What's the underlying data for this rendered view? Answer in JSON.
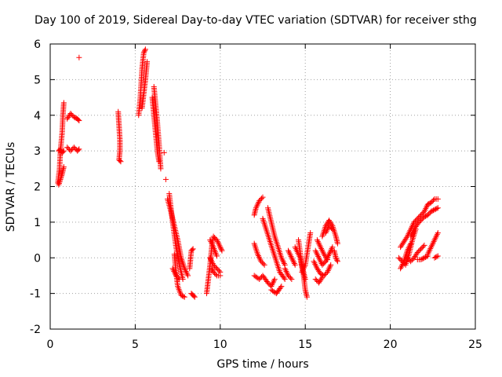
{
  "chart_data": {
    "type": "scatter",
    "title": "Day 100 of 2019, Sidereal Day-to-day VTEC variation (SDTVAR) for receiver sthg",
    "xlabel": "GPS time / hours",
    "ylabel": "SDTVAR / TECUs",
    "xlim": [
      0,
      25
    ],
    "ylim": [
      -2,
      6
    ],
    "xticks": [
      "0",
      "5",
      "10",
      "15",
      "20",
      "25"
    ],
    "yticks": [
      "-2",
      "-1",
      "0",
      "1",
      "2",
      "3",
      "4",
      "5",
      "6"
    ],
    "grid": true,
    "marker": "+",
    "color": "#ff0000",
    "series": [
      {
        "name": "SDTVAR",
        "tracks": [
          [
            [
              0.45,
              2.1
            ],
            [
              0.55,
              2.5
            ],
            [
              0.6,
              3.0
            ],
            [
              0.7,
              3.5
            ],
            [
              0.75,
              4.0
            ],
            [
              0.8,
              4.35
            ]
          ],
          [
            [
              0.5,
              2.05
            ],
            [
              0.6,
              2.2
            ],
            [
              0.7,
              2.35
            ],
            [
              0.8,
              2.55
            ]
          ],
          [
            [
              0.5,
              3.0
            ],
            [
              0.6,
              3.05
            ],
            [
              0.7,
              2.95
            ],
            [
              0.8,
              3.0
            ]
          ],
          [
            [
              1.0,
              3.9
            ],
            [
              1.2,
              4.05
            ],
            [
              1.4,
              3.95
            ],
            [
              1.6,
              3.9
            ],
            [
              1.7,
              3.85
            ]
          ],
          [
            [
              1.0,
              3.1
            ],
            [
              1.2,
              3.0
            ],
            [
              1.4,
              3.1
            ],
            [
              1.6,
              3.0
            ],
            [
              1.7,
              3.05
            ]
          ],
          [
            [
              1.7,
              5.62
            ]
          ],
          [
            [
              4.0,
              4.1
            ],
            [
              4.05,
              3.7
            ],
            [
              4.1,
              3.3
            ],
            [
              4.1,
              3.0
            ],
            [
              4.05,
              2.75
            ],
            [
              4.15,
              2.7
            ]
          ],
          [
            [
              5.2,
              4.0
            ],
            [
              5.3,
              4.5
            ],
            [
              5.4,
              5.3
            ],
            [
              5.5,
              5.75
            ],
            [
              5.6,
              5.85
            ]
          ],
          [
            [
              5.4,
              4.2
            ],
            [
              5.5,
              4.6
            ],
            [
              5.6,
              5.0
            ],
            [
              5.7,
              5.5
            ]
          ],
          [
            [
              6.1,
              4.8
            ],
            [
              6.2,
              4.3
            ],
            [
              6.3,
              3.8
            ],
            [
              6.4,
              3.2
            ],
            [
              6.5,
              2.5
            ]
          ],
          [
            [
              6.0,
              4.5
            ],
            [
              6.1,
              4.0
            ],
            [
              6.2,
              3.5
            ],
            [
              6.3,
              3.0
            ],
            [
              6.4,
              2.7
            ]
          ],
          [
            [
              6.7,
              2.95
            ]
          ],
          [
            [
              6.8,
              2.2
            ]
          ],
          [
            [
              6.9,
              1.65
            ],
            [
              7.1,
              1.3
            ],
            [
              7.3,
              0.9
            ],
            [
              7.5,
              0.5
            ],
            [
              7.7,
              0.0
            ],
            [
              7.9,
              -0.3
            ],
            [
              8.1,
              -0.5
            ]
          ],
          [
            [
              7.0,
              1.8
            ],
            [
              7.2,
              1.0
            ],
            [
              7.4,
              0.3
            ],
            [
              7.6,
              -0.2
            ],
            [
              7.8,
              -0.6
            ]
          ],
          [
            [
              7.3,
              0.1
            ],
            [
              7.4,
              -0.4
            ],
            [
              7.5,
              -0.8
            ],
            [
              7.7,
              -1.05
            ],
            [
              7.9,
              -1.1
            ]
          ],
          [
            [
              7.2,
              -0.3
            ],
            [
              7.4,
              -0.5
            ],
            [
              7.6,
              -0.6
            ]
          ],
          [
            [
              8.3,
              -1.0
            ],
            [
              8.4,
              -1.05
            ],
            [
              8.5,
              -1.1
            ]
          ],
          [
            [
              8.2,
              -0.3
            ],
            [
              8.3,
              0.2
            ],
            [
              8.4,
              0.25
            ]
          ],
          [
            [
              9.2,
              -1.0
            ],
            [
              9.3,
              -0.6
            ],
            [
              9.4,
              -0.2
            ],
            [
              9.5,
              0.3
            ],
            [
              9.6,
              0.6
            ],
            [
              9.8,
              0.5
            ],
            [
              10.0,
              0.3
            ],
            [
              10.1,
              0.2
            ]
          ],
          [
            [
              9.4,
              0.0
            ],
            [
              9.6,
              -0.2
            ],
            [
              9.8,
              -0.3
            ],
            [
              10.0,
              -0.4
            ]
          ],
          [
            [
              9.5,
              -0.3
            ],
            [
              9.6,
              -0.4
            ],
            [
              9.8,
              -0.5
            ],
            [
              10.0,
              -0.5
            ]
          ],
          [
            [
              9.4,
              0.5
            ],
            [
              9.6,
              0.3
            ],
            [
              9.8,
              0.05
            ]
          ],
          [
            [
              12.0,
              -0.5
            ],
            [
              12.3,
              -0.6
            ],
            [
              12.5,
              -0.5
            ],
            [
              12.8,
              -0.7
            ],
            [
              13.0,
              -0.8
            ],
            [
              13.2,
              -0.6
            ]
          ],
          [
            [
              12.0,
              1.2
            ],
            [
              12.1,
              1.4
            ],
            [
              12.3,
              1.6
            ],
            [
              12.5,
              1.7
            ]
          ],
          [
            [
              12.0,
              0.4
            ],
            [
              12.2,
              0.1
            ],
            [
              12.4,
              -0.1
            ],
            [
              12.6,
              -0.2
            ]
          ],
          [
            [
              12.8,
              1.4
            ],
            [
              13.0,
              1.0
            ],
            [
              13.2,
              0.6
            ],
            [
              13.4,
              0.3
            ],
            [
              13.6,
              0.0
            ],
            [
              13.8,
              -0.2
            ]
          ],
          [
            [
              12.5,
              1.1
            ],
            [
              12.7,
              0.8
            ],
            [
              12.9,
              0.5
            ],
            [
              13.1,
              0.2
            ],
            [
              13.3,
              -0.1
            ],
            [
              13.5,
              -0.4
            ],
            [
              13.8,
              -0.6
            ]
          ],
          [
            [
              13.0,
              -0.9
            ],
            [
              13.3,
              -1.0
            ],
            [
              13.6,
              -0.8
            ]
          ],
          [
            [
              13.8,
              -0.3
            ],
            [
              14.0,
              -0.5
            ],
            [
              14.2,
              -0.6
            ]
          ],
          [
            [
              14.0,
              0.2
            ],
            [
              14.2,
              0.0
            ],
            [
              14.4,
              -0.2
            ]
          ],
          [
            [
              14.4,
              0.3
            ],
            [
              14.7,
              0.0
            ],
            [
              14.9,
              -0.5
            ],
            [
              15.0,
              -0.9
            ],
            [
              15.1,
              -1.1
            ]
          ],
          [
            [
              14.6,
              0.5
            ],
            [
              14.8,
              -0.2
            ],
            [
              15.0,
              -0.6
            ]
          ],
          [
            [
              14.8,
              -0.4
            ],
            [
              15.0,
              -0.2
            ],
            [
              15.2,
              0.4
            ],
            [
              15.3,
              0.7
            ]
          ],
          [
            [
              15.5,
              -0.1
            ],
            [
              15.7,
              -0.3
            ],
            [
              15.9,
              -0.45
            ],
            [
              16.1,
              -0.5
            ],
            [
              16.3,
              -0.4
            ],
            [
              16.5,
              -0.2
            ]
          ],
          [
            [
              15.6,
              0.2
            ],
            [
              15.8,
              0.0
            ],
            [
              16.0,
              -0.2
            ],
            [
              16.2,
              -0.1
            ],
            [
              16.4,
              0.1
            ],
            [
              16.6,
              0.3
            ]
          ],
          [
            [
              15.7,
              0.5
            ],
            [
              15.9,
              0.3
            ],
            [
              16.1,
              0.1
            ],
            [
              16.3,
              -0.05
            ]
          ],
          [
            [
              15.6,
              -0.6
            ],
            [
              15.8,
              -0.7
            ],
            [
              16.0,
              -0.55
            ]
          ],
          [
            [
              16.0,
              0.6
            ],
            [
              16.2,
              0.9
            ],
            [
              16.4,
              1.05
            ],
            [
              16.6,
              0.9
            ],
            [
              16.8,
              0.6
            ],
            [
              16.9,
              0.4
            ]
          ],
          [
            [
              16.2,
              0.7
            ],
            [
              16.4,
              0.9
            ],
            [
              16.6,
              0.8
            ]
          ],
          [
            [
              16.7,
              0.2
            ],
            [
              16.8,
              0.0
            ],
            [
              16.9,
              -0.1
            ]
          ],
          [
            [
              20.5,
              0.0
            ],
            [
              20.7,
              -0.1
            ],
            [
              20.9,
              -0.2
            ],
            [
              21.1,
              0.1
            ],
            [
              21.3,
              0.5
            ],
            [
              21.5,
              0.8
            ]
          ],
          [
            [
              20.6,
              -0.3
            ],
            [
              20.8,
              -0.1
            ],
            [
              21.0,
              0.2
            ],
            [
              21.2,
              0.4
            ]
          ],
          [
            [
              20.6,
              0.3
            ],
            [
              20.8,
              0.45
            ],
            [
              21.0,
              0.6
            ],
            [
              21.2,
              0.8
            ],
            [
              21.4,
              1.0
            ],
            [
              21.6,
              1.1
            ],
            [
              21.8,
              1.2
            ],
            [
              22.0,
              1.3
            ],
            [
              22.2,
              1.5
            ],
            [
              22.4,
              1.55
            ],
            [
              22.6,
              1.65
            ],
            [
              22.8,
              1.65
            ]
          ],
          [
            [
              21.2,
              0.6
            ],
            [
              21.4,
              0.8
            ],
            [
              21.6,
              0.95
            ],
            [
              21.8,
              1.05
            ],
            [
              22.0,
              1.15
            ],
            [
              22.2,
              1.2
            ],
            [
              22.4,
              1.3
            ],
            [
              22.6,
              1.35
            ],
            [
              22.8,
              1.4
            ]
          ],
          [
            [
              21.0,
              0.0
            ],
            [
              21.2,
              -0.1
            ],
            [
              21.4,
              0.0
            ],
            [
              21.6,
              0.15
            ],
            [
              21.8,
              0.25
            ],
            [
              22.0,
              0.35
            ]
          ],
          [
            [
              21.6,
              -0.05
            ],
            [
              21.8,
              -0.05
            ],
            [
              22.0,
              0.0
            ],
            [
              22.2,
              0.05
            ]
          ],
          [
            [
              22.2,
              0.1
            ],
            [
              22.4,
              0.3
            ],
            [
              22.6,
              0.5
            ],
            [
              22.8,
              0.7
            ]
          ],
          [
            [
              22.6,
              0.0
            ],
            [
              22.8,
              0.05
            ]
          ]
        ]
      }
    ]
  }
}
